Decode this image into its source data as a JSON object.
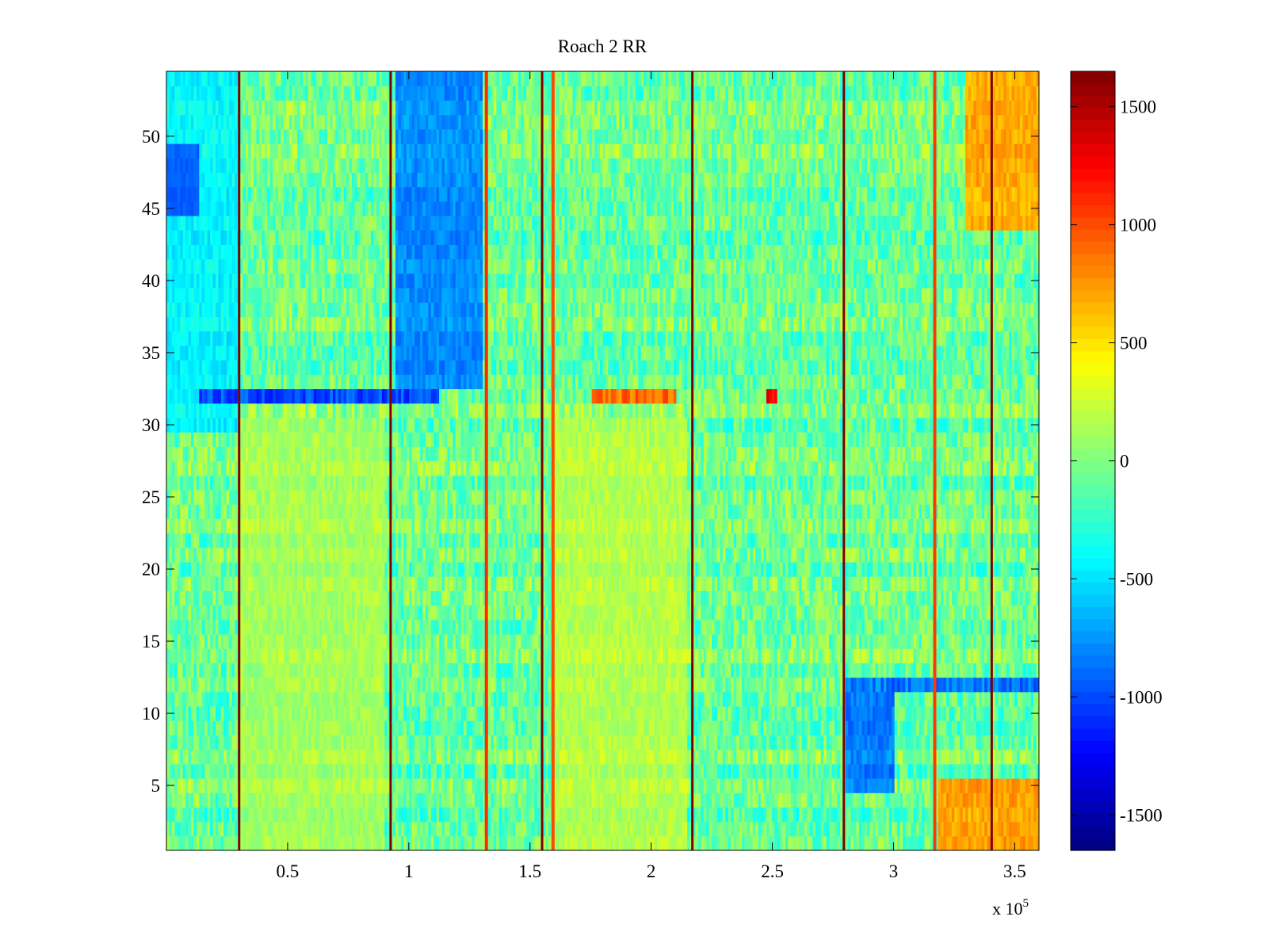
{
  "chart_data": {
    "type": "heatmap",
    "title": "Roach 2 RR",
    "xlabel": "",
    "ylabel": "",
    "x_exponent_label": "x 10",
    "x_exponent_power": "5",
    "xlim": [
      0,
      360000
    ],
    "ylim": [
      0.5,
      54.5
    ],
    "x_ticks": [
      {
        "value": 50000,
        "label": "0.5"
      },
      {
        "value": 100000,
        "label": "1"
      },
      {
        "value": 150000,
        "label": "1.5"
      },
      {
        "value": 200000,
        "label": "2"
      },
      {
        "value": 250000,
        "label": "2.5"
      },
      {
        "value": 300000,
        "label": "3"
      },
      {
        "value": 350000,
        "label": "3.5"
      }
    ],
    "y_ticks": [
      {
        "value": 5,
        "label": "5"
      },
      {
        "value": 10,
        "label": "10"
      },
      {
        "value": 15,
        "label": "15"
      },
      {
        "value": 20,
        "label": "20"
      },
      {
        "value": 25,
        "label": "25"
      },
      {
        "value": 30,
        "label": "30"
      },
      {
        "value": 35,
        "label": "35"
      },
      {
        "value": 40,
        "label": "40"
      },
      {
        "value": 45,
        "label": "45"
      },
      {
        "value": 50,
        "label": "50"
      }
    ],
    "colorbar": {
      "colormap": "jet",
      "clim": [
        -1650,
        1650
      ],
      "ticks": [
        {
          "value": 1500,
          "label": "1500"
        },
        {
          "value": 1000,
          "label": "1000"
        },
        {
          "value": 500,
          "label": "500"
        },
        {
          "value": 0,
          "label": "0"
        },
        {
          "value": -500,
          "label": "-500"
        },
        {
          "value": -1000,
          "label": "-1000"
        },
        {
          "value": -1500,
          "label": "-1500"
        }
      ]
    },
    "rows": 54,
    "vertical_features": [
      {
        "x": 30000,
        "value": 1650
      },
      {
        "x": 92500,
        "value": 1650
      },
      {
        "x": 132000,
        "value": 1100
      },
      {
        "x": 155000,
        "value": 1650
      },
      {
        "x": 159500,
        "value": 1000
      },
      {
        "x": 217000,
        "value": 1650
      },
      {
        "x": 279500,
        "value": 1650
      },
      {
        "x": 317000,
        "value": 1050
      },
      {
        "x": 340500,
        "value": 1650
      }
    ],
    "horizontal_features": [
      {
        "row": 32,
        "x_from": 13000,
        "x_to": 113000,
        "value": -1000
      },
      {
        "row": 32,
        "x_from": 175000,
        "x_to": 210000,
        "value": 900
      },
      {
        "row": 32,
        "x_from": 247000,
        "x_to": 252000,
        "value": 1300
      },
      {
        "row": 12,
        "x_from": 280000,
        "x_to": 360000,
        "value": -850
      }
    ],
    "regional_means": [
      {
        "x_from": 0,
        "x_to": 14000,
        "y_from": 45,
        "y_to": 49,
        "value": -1150
      },
      {
        "x_from": 0,
        "x_to": 30000,
        "y_from": 30,
        "y_to": 54,
        "value": -400
      },
      {
        "x_from": 30000,
        "x_to": 90000,
        "y_from": 1,
        "y_to": 30,
        "value": 150
      },
      {
        "x_from": 95000,
        "x_to": 130000,
        "y_from": 33,
        "y_to": 54,
        "value": -750
      },
      {
        "x_from": 160000,
        "x_to": 215000,
        "y_from": 1,
        "y_to": 30,
        "value": 200
      },
      {
        "x_from": 280000,
        "x_to": 300000,
        "y_from": 5,
        "y_to": 11,
        "value": -800
      },
      {
        "x_from": 330000,
        "x_to": 360000,
        "y_from": 44,
        "y_to": 54,
        "value": 700
      },
      {
        "x_from": 318000,
        "x_to": 360000,
        "y_from": 1,
        "y_to": 5,
        "value": 750
      }
    ]
  }
}
